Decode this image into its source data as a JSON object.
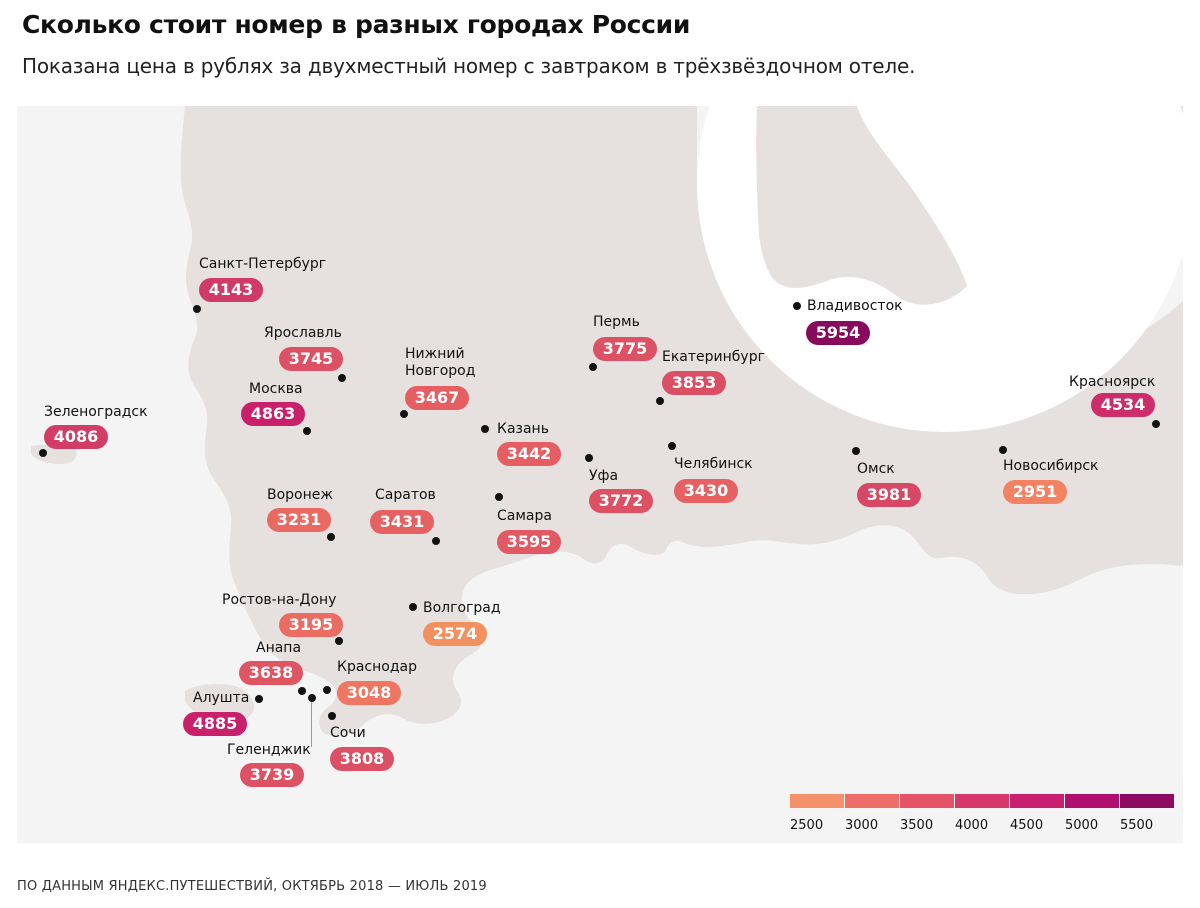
{
  "header": {
    "title": "Сколько стоит номер в разных городах России",
    "subtitle": "Показана цена в рублях за двухместный номер с завтраком в трёхзвёздочном отеле."
  },
  "map": {
    "land_color": "#e6e1df",
    "water_color": "#f5f4f4",
    "cities": [
      {
        "name": "Санкт-Петербург",
        "price": "4143",
        "color": "#d03a66"
      },
      {
        "name": "Ярославль",
        "price": "3745",
        "color": "#dc5264"
      },
      {
        "name": "Москва",
        "price": "4863",
        "color": "#c8206a"
      },
      {
        "name": "Зеленоградск",
        "price": "4086",
        "color": "#d23d66"
      },
      {
        "name": "Нижний\nНовгород",
        "price": "3467",
        "color": "#e55f62"
      },
      {
        "name": "Казань",
        "price": "3442",
        "color": "#e55f62"
      },
      {
        "name": "Пермь",
        "price": "3775",
        "color": "#dc5264"
      },
      {
        "name": "Екатеринбург",
        "price": "3853",
        "color": "#da4f64"
      },
      {
        "name": "Владивосток",
        "price": "5954",
        "color": "#870a5c"
      },
      {
        "name": "Красноярск",
        "price": "4534",
        "color": "#cd2d68"
      },
      {
        "name": "Уфа",
        "price": "3772",
        "color": "#dc5264"
      },
      {
        "name": "Челябинск",
        "price": "3430",
        "color": "#e66262"
      },
      {
        "name": "Омск",
        "price": "3981",
        "color": "#d64865"
      },
      {
        "name": "Новосибирск",
        "price": "2951",
        "color": "#f28262"
      },
      {
        "name": "Воронеж",
        "price": "3231",
        "color": "#ea6a62"
      },
      {
        "name": "Саратов",
        "price": "3431",
        "color": "#e66262"
      },
      {
        "name": "Самара",
        "price": "3595",
        "color": "#e15963"
      },
      {
        "name": "Ростов-на-Дону",
        "price": "3195",
        "color": "#eb6c62"
      },
      {
        "name": "Волгоград",
        "price": "2574",
        "color": "#f39060"
      },
      {
        "name": "Анапа",
        "price": "3638",
        "color": "#df5663"
      },
      {
        "name": "Краснодар",
        "price": "3048",
        "color": "#ef7662"
      },
      {
        "name": "Алушта",
        "price": "4885",
        "color": "#c8206a"
      },
      {
        "name": "Сочи",
        "price": "3808",
        "color": "#db5064"
      },
      {
        "name": "Геленджик",
        "price": "3739",
        "color": "#dc5264"
      }
    ]
  },
  "legend": {
    "colors": [
      "#f4916a",
      "#ee6d69",
      "#e45368",
      "#d8376c",
      "#c91f71",
      "#b00f70",
      "#8c0a62"
    ],
    "ticks": [
      "2500",
      "3000",
      "3500",
      "4000",
      "4500",
      "5000",
      "5500"
    ]
  },
  "footer": {
    "source": "ПО ДАННЫМ ЯНДЕКС.ПУТЕШЕСТВИЙ, ОКТЯБРЬ 2018 — ИЮЛЬ 2019"
  }
}
